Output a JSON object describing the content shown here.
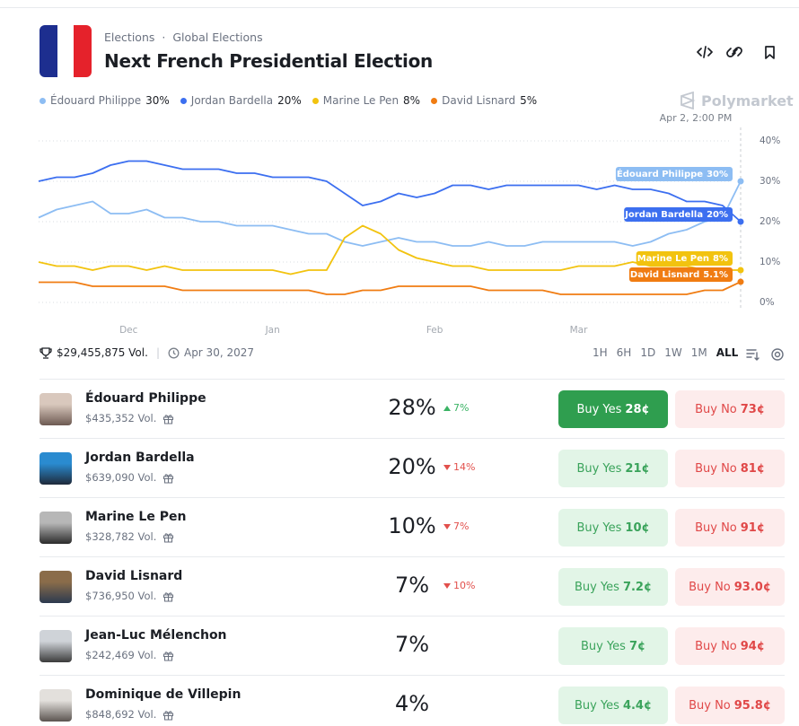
{
  "header": {
    "breadcrumb": [
      "Elections",
      "Global Elections"
    ],
    "title": "Next French Presidential Election",
    "brand": "Polymarket"
  },
  "chart_data": {
    "type": "line",
    "hover_label": "Apr 2, 2:00 PM",
    "categories": [
      null,
      null,
      null,
      null,
      null,
      "Dec",
      null,
      null,
      null,
      null,
      null,
      null,
      null,
      "Jan",
      null,
      null,
      null,
      null,
      null,
      null,
      null,
      null,
      "Feb",
      null,
      null,
      null,
      null,
      null,
      null,
      null,
      "Mar",
      null,
      null,
      null,
      null,
      null,
      null,
      null,
      null,
      null
    ],
    "series": [
      {
        "name": "Édouard Philippe",
        "color": "#8dbdf3",
        "legend_value": "30%",
        "end_label": "30%",
        "values": [
          21,
          23,
          24,
          25,
          22,
          22,
          23,
          21,
          21,
          20,
          20,
          19,
          19,
          19,
          18,
          17,
          17,
          15,
          14,
          15,
          16,
          15,
          15,
          14,
          14,
          15,
          14,
          14,
          15,
          15,
          15,
          15,
          15,
          14,
          15,
          17,
          18,
          20,
          21,
          30
        ]
      },
      {
        "name": "Jordan Bardella",
        "color": "#3c6ff0",
        "legend_value": "20%",
        "end_label": "20%",
        "values": [
          30,
          31,
          31,
          32,
          34,
          35,
          35,
          34,
          33,
          33,
          33,
          32,
          32,
          31,
          31,
          31,
          30,
          27,
          24,
          25,
          27,
          26,
          27,
          29,
          29,
          28,
          29,
          29,
          29,
          29,
          29,
          28,
          29,
          28,
          28,
          27,
          25,
          25,
          24,
          20
        ]
      },
      {
        "name": "Marine Le Pen",
        "color": "#f2c30f",
        "legend_value": "8%",
        "end_label": "8%",
        "values": [
          10,
          9,
          9,
          8,
          9,
          9,
          8,
          9,
          8,
          8,
          8,
          8,
          8,
          8,
          7,
          8,
          8,
          16,
          19,
          17,
          13,
          11,
          10,
          9,
          9,
          8,
          8,
          8,
          8,
          8,
          9,
          9,
          9,
          10,
          9,
          9,
          9,
          8,
          8,
          8
        ]
      },
      {
        "name": "David Lisnard",
        "color": "#f07c12",
        "legend_value": "5%",
        "end_label": "5.1%",
        "values": [
          5,
          5,
          5,
          4,
          4,
          4,
          4,
          4,
          3,
          3,
          3,
          3,
          3,
          3,
          3,
          3,
          2,
          2,
          3,
          3,
          4,
          4,
          4,
          4,
          4,
          3,
          3,
          3,
          3,
          2,
          2,
          2,
          2,
          2,
          2,
          2,
          2,
          3,
          3,
          5.1
        ]
      }
    ],
    "ylim": [
      0,
      40
    ],
    "yticks": [
      {
        "value": 0,
        "label": "0%"
      },
      {
        "value": 10,
        "label": "10%"
      },
      {
        "value": 20,
        "label": "20%"
      },
      {
        "value": 30,
        "label": "30%"
      },
      {
        "value": 40,
        "label": "40%"
      }
    ],
    "grid": true
  },
  "footer": {
    "volume": "$29,455,875 Vol.",
    "end_date": "Apr 30, 2027",
    "ranges": [
      "1H",
      "6H",
      "1D",
      "1W",
      "1M",
      "ALL"
    ],
    "active_range": "ALL"
  },
  "markets": [
    {
      "name": "Édouard Philippe",
      "volume": "$435,352 Vol.",
      "chance": "28%",
      "change": "7%",
      "direction": "up",
      "yes_label": "Buy Yes",
      "yes_price": "28¢",
      "no_label": "Buy No",
      "no_price": "73¢"
    },
    {
      "name": "Jordan Bardella",
      "volume": "$639,090 Vol.",
      "chance": "20%",
      "change": "14%",
      "direction": "down",
      "yes_label": "Buy Yes",
      "yes_price": "21¢",
      "no_label": "Buy No",
      "no_price": "81¢"
    },
    {
      "name": "Marine Le Pen",
      "volume": "$328,782 Vol.",
      "chance": "10%",
      "change": "7%",
      "direction": "down",
      "yes_label": "Buy Yes",
      "yes_price": "10¢",
      "no_label": "Buy No",
      "no_price": "91¢"
    },
    {
      "name": "David Lisnard",
      "volume": "$736,950 Vol.",
      "chance": "7%",
      "change": "10%",
      "direction": "down",
      "yes_label": "Buy Yes",
      "yes_price": "7.2¢",
      "no_label": "Buy No",
      "no_price": "93.0¢"
    },
    {
      "name": "Jean-Luc Mélenchon",
      "volume": "$242,469 Vol.",
      "chance": "7%",
      "change": null,
      "direction": null,
      "yes_label": "Buy Yes",
      "yes_price": "7¢",
      "no_label": "Buy No",
      "no_price": "94¢"
    },
    {
      "name": "Dominique de Villepin",
      "volume": "$848,692 Vol.",
      "chance": "4%",
      "change": null,
      "direction": null,
      "yes_label": "Buy Yes",
      "yes_price": "4.4¢",
      "no_label": "Buy No",
      "no_price": "95.8¢"
    }
  ]
}
